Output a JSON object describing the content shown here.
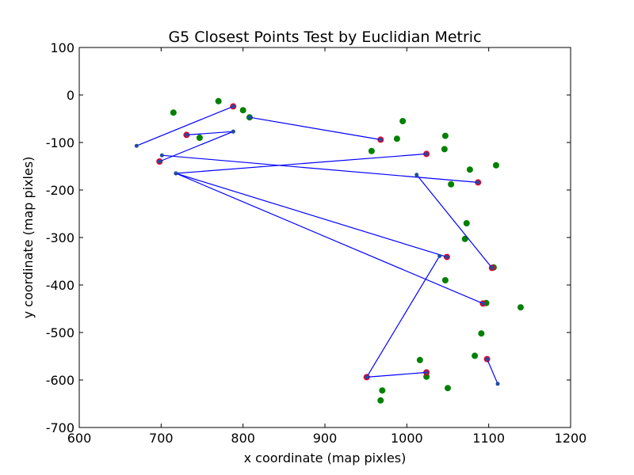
{
  "chart_data": {
    "type": "scatter",
    "title": "G5 Closest Points Test by Euclidian Metric",
    "xlabel": "x coordinate (map pixles)",
    "ylabel": "y coordinate (map pixles)",
    "xlim": [
      600,
      1200
    ],
    "ylim": [
      -700,
      100
    ],
    "xticks": [
      600,
      700,
      800,
      900,
      1000,
      1100,
      1200
    ],
    "yticks": [
      -700,
      -600,
      -500,
      -400,
      -300,
      -200,
      -100,
      0,
      100
    ],
    "grid": false,
    "colors": {
      "background_points": "#008000",
      "closest_points": "#e8002a",
      "lines": "#0000ff",
      "endpoints": "#1f4e9e"
    },
    "background_points": [
      [
        715,
        -37
      ],
      [
        770,
        -13
      ],
      [
        800,
        -32
      ],
      [
        808,
        -47
      ],
      [
        747,
        -90
      ],
      [
        995,
        -55
      ],
      [
        988,
        -92
      ],
      [
        957,
        -118
      ],
      [
        1047,
        -86
      ],
      [
        1046,
        -114
      ],
      [
        1077,
        -157
      ],
      [
        1109,
        -148
      ],
      [
        1054,
        -188
      ],
      [
        1073,
        -270
      ],
      [
        1071,
        -303
      ],
      [
        1047,
        -390
      ],
      [
        1097,
        -438
      ],
      [
        1139,
        -447
      ],
      [
        1091,
        -502
      ],
      [
        1016,
        -558
      ],
      [
        1083,
        -549
      ],
      [
        1024,
        -593
      ],
      [
        1050,
        -617
      ],
      [
        970,
        -622
      ],
      [
        968,
        -643
      ],
      [
        1106,
        -363
      ]
    ],
    "closest_points": [
      [
        788,
        -24
      ],
      [
        731,
        -84
      ],
      [
        698,
        -140
      ],
      [
        968,
        -94
      ],
      [
        1024,
        -124
      ],
      [
        1087,
        -184
      ],
      [
        1049,
        -341
      ],
      [
        1104,
        -364
      ],
      [
        1093,
        -439
      ],
      [
        951,
        -594
      ],
      [
        1024,
        -584
      ],
      [
        1098,
        -556
      ]
    ],
    "segments": [
      [
        [
          670,
          -107
        ],
        [
          788,
          -24
        ]
      ],
      [
        [
          731,
          -84
        ],
        [
          788,
          -77
        ]
      ],
      [
        [
          698,
          -140
        ],
        [
          788,
          -77
        ]
      ],
      [
        [
          808,
          -47
        ],
        [
          968,
          -94
        ]
      ],
      [
        [
          718,
          -165
        ],
        [
          1024,
          -124
        ]
      ],
      [
        [
          701,
          -127
        ],
        [
          1087,
          -184
        ]
      ],
      [
        [
          718,
          -165
        ],
        [
          1049,
          -341
        ]
      ],
      [
        [
          718,
          -165
        ],
        [
          1093,
          -439
        ]
      ],
      [
        [
          1012,
          -168
        ],
        [
          1104,
          -364
        ]
      ],
      [
        [
          1040,
          -339
        ],
        [
          951,
          -594
        ]
      ],
      [
        [
          951,
          -594
        ],
        [
          1024,
          -584
        ]
      ],
      [
        [
          1098,
          -556
        ],
        [
          1111,
          -608
        ]
      ]
    ]
  }
}
